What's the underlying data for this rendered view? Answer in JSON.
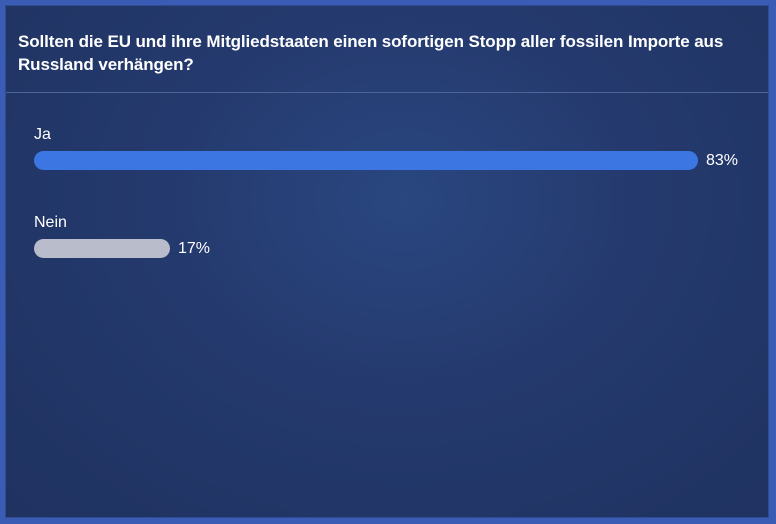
{
  "poll": {
    "question": "Sollten die EU und ihre Mitgliedstaaten einen sofortigen Stopp aller fossilen Importe aus Russland verhängen?",
    "options": [
      {
        "label": "Ja",
        "percent_text": "83%",
        "percent": 83,
        "color": "#3b76e3"
      },
      {
        "label": "Nein",
        "percent_text": "17%",
        "percent": 17,
        "color": "#b9bdcb"
      }
    ]
  },
  "colors": {
    "background": "#3a5cb4",
    "card": "#24396d"
  }
}
